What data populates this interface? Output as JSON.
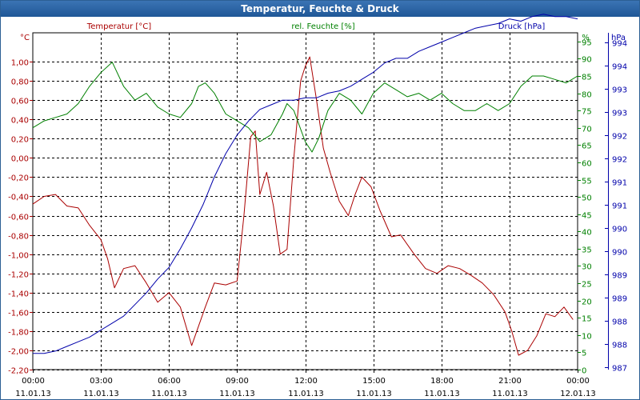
{
  "chart_data": {
    "type": "line",
    "title": "Temperatur, Feuchte & Druck",
    "grid": true,
    "x_ticks": [
      {
        "time": "00:00",
        "date": "11.01.13"
      },
      {
        "time": "03:00",
        "date": "11.01.13"
      },
      {
        "time": "06:00",
        "date": "11.01.13"
      },
      {
        "time": "09:00",
        "date": "11.01.13"
      },
      {
        "time": "12:00",
        "date": "11.01.13"
      },
      {
        "time": "15:00",
        "date": "11.01.13"
      },
      {
        "time": "18:00",
        "date": "11.01.13"
      },
      {
        "time": "21:00",
        "date": "11.01.13"
      },
      {
        "time": "00:00",
        "date": "12.01.13"
      }
    ],
    "xlim_hours": [
      0,
      24
    ],
    "axes": {
      "temperature": {
        "unit": "°C",
        "ylim": [
          -2.2,
          1.3
        ],
        "ticks": [
          "1,00",
          "0,80",
          "0,60",
          "0,40",
          "0,20",
          "0,00",
          "-0,20",
          "-0,40",
          "-0,60",
          "-0,80",
          "-1,00",
          "-1,20",
          "-1,40",
          "-1,60",
          "-1,80",
          "-2,00",
          "-2,20"
        ],
        "tick_values": [
          1.0,
          0.8,
          0.6,
          0.4,
          0.2,
          0.0,
          -0.2,
          -0.4,
          -0.6,
          -0.8,
          -1.0,
          -1.2,
          -1.4,
          -1.6,
          -1.8,
          -2.0,
          -2.2
        ]
      },
      "humidity": {
        "unit": "%",
        "ylim": [
          0,
          97.5
        ],
        "ticks": [
          "95",
          "90",
          "85",
          "80",
          "75",
          "70",
          "65",
          "60",
          "55",
          "50",
          "45",
          "40",
          "35",
          "30",
          "25",
          "20",
          "15",
          "10",
          "5",
          "0"
        ],
        "tick_values": [
          95,
          90,
          85,
          80,
          75,
          70,
          65,
          60,
          55,
          50,
          45,
          40,
          35,
          30,
          25,
          20,
          15,
          10,
          5,
          0
        ]
      },
      "pressure": {
        "unit": "hPa",
        "ylim": [
          986.95,
          994.2
        ],
        "ticks": [
          "994",
          "994",
          "993",
          "993",
          "992",
          "992",
          "991",
          "991",
          "990",
          "990",
          "989",
          "989",
          "988",
          "988",
          "987"
        ],
        "tick_positions": [
          994,
          993.5,
          993,
          992.5,
          992,
          991.5,
          991,
          990.5,
          990,
          989.5,
          989,
          988.5,
          988,
          987.5,
          987
        ]
      }
    },
    "series": [
      {
        "name": "Temperatur [°C]",
        "axis": "temperature",
        "color": "#aa0000",
        "x": [
          0,
          0.5,
          1,
          1.5,
          2,
          2.5,
          3,
          3.3,
          3.6,
          4,
          4.5,
          5,
          5.5,
          6,
          6.5,
          7,
          7.3,
          7.6,
          8,
          8.5,
          9,
          9.3,
          9.6,
          9.8,
          10,
          10.3,
          10.6,
          10.9,
          11.2,
          11.5,
          11.8,
          12,
          12.2,
          12.5,
          12.8,
          13.1,
          13.5,
          13.9,
          14.2,
          14.5,
          14.9,
          15.3,
          15.8,
          16.2,
          16.8,
          17.3,
          17.8,
          18.3,
          18.8,
          19.3,
          19.8,
          20.3,
          20.8,
          21.1,
          21.4,
          21.8,
          22.2,
          22.6,
          23,
          23.4,
          23.8
        ],
        "values": [
          -0.48,
          -0.4,
          -0.38,
          -0.5,
          -0.52,
          -0.7,
          -0.85,
          -1.05,
          -1.35,
          -1.15,
          -1.12,
          -1.3,
          -1.5,
          -1.4,
          -1.55,
          -1.95,
          -1.75,
          -1.55,
          -1.3,
          -1.32,
          -1.28,
          -0.6,
          0.22,
          0.28,
          -0.38,
          -0.15,
          -0.5,
          -1.0,
          -0.95,
          0.0,
          0.8,
          0.95,
          1.05,
          0.6,
          0.1,
          -0.15,
          -0.45,
          -0.6,
          -0.38,
          -0.2,
          -0.3,
          -0.55,
          -0.82,
          -0.8,
          -1.0,
          -1.15,
          -1.2,
          -1.12,
          -1.15,
          -1.22,
          -1.3,
          -1.42,
          -1.6,
          -1.8,
          -2.05,
          -2.0,
          -1.85,
          -1.62,
          -1.65,
          -1.55,
          -1.68
        ]
      },
      {
        "name": "rel. Feuchte [%]",
        "axis": "humidity",
        "color": "#008000",
        "x": [
          0,
          0.5,
          1,
          1.5,
          2,
          2.5,
          3,
          3.5,
          4,
          4.5,
          5,
          5.5,
          6,
          6.5,
          7,
          7.3,
          7.6,
          8,
          8.5,
          9,
          9.5,
          10,
          10.5,
          11,
          11.2,
          11.5,
          12,
          12.3,
          12.6,
          13,
          13.5,
          14,
          14.5,
          15,
          15.5,
          16,
          16.5,
          17,
          17.5,
          18,
          18.5,
          19,
          19.5,
          20,
          20.5,
          21,
          21.5,
          22,
          22.5,
          23,
          23.5,
          24
        ],
        "values": [
          70,
          72,
          73,
          74,
          77,
          82,
          86,
          89,
          82,
          78,
          80,
          76,
          74,
          73,
          77,
          82,
          83,
          80,
          74,
          72,
          70,
          66,
          68,
          74,
          77,
          75,
          66,
          63,
          67,
          75,
          80,
          78,
          74,
          80,
          83,
          81,
          79,
          80,
          78,
          80,
          77,
          75,
          75,
          77,
          75,
          77,
          82,
          85,
          85,
          84,
          83,
          85
        ]
      },
      {
        "name": "Druck [hPa]",
        "axis": "pressure",
        "color": "#0000aa",
        "x": [
          0,
          0.5,
          1,
          1.5,
          2,
          2.5,
          3,
          3.5,
          4,
          4.5,
          5,
          5.5,
          6,
          6.5,
          7,
          7.5,
          8,
          8.5,
          9,
          9.5,
          10,
          10.5,
          11,
          11.5,
          12,
          12.5,
          13,
          13.5,
          14,
          14.5,
          15,
          15.5,
          16,
          16.5,
          17,
          17.5,
          18,
          18.5,
          19,
          19.5,
          20,
          20.5,
          21,
          21.5,
          22,
          22.5,
          23,
          23.5,
          24
        ],
        "values": [
          987.3,
          987.3,
          987.35,
          987.45,
          987.55,
          987.65,
          987.8,
          987.95,
          988.1,
          988.35,
          988.6,
          988.9,
          989.15,
          989.55,
          990.0,
          990.5,
          991.1,
          991.6,
          992.0,
          992.3,
          992.55,
          992.65,
          992.75,
          992.75,
          992.8,
          992.8,
          992.9,
          992.95,
          993.05,
          993.2,
          993.35,
          993.55,
          993.65,
          993.65,
          993.8,
          993.9,
          994.0,
          994.1,
          994.2,
          994.3,
          994.35,
          994.4,
          994.5,
          994.45,
          994.55,
          994.6,
          994.55,
          994.55,
          994.5
        ]
      }
    ]
  }
}
